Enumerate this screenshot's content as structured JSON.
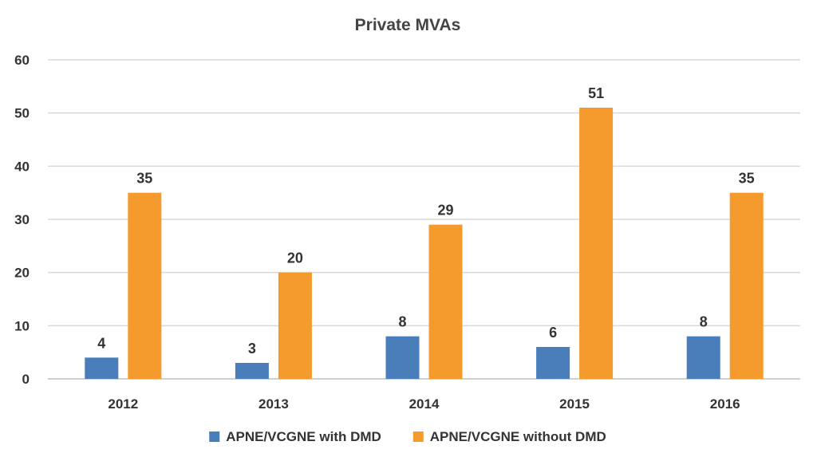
{
  "chart_data": {
    "type": "bar",
    "title": "Private MVAs",
    "xlabel": "",
    "ylabel": "",
    "categories": [
      "2012",
      "2013",
      "2014",
      "2015",
      "2016"
    ],
    "series": [
      {
        "name": "APNE/VCGNE with DMD",
        "values": [
          4,
          3,
          8,
          6,
          8
        ],
        "color": "#4a7ebb"
      },
      {
        "name": "APNE/VCGNE without DMD",
        "values": [
          35,
          20,
          29,
          51,
          35
        ],
        "color": "#f59b2e"
      }
    ],
    "ylim": [
      0,
      60
    ],
    "yticks": [
      0,
      10,
      20,
      30,
      40,
      50,
      60
    ],
    "grid": true,
    "legend": "bottom",
    "data_labels": true
  }
}
